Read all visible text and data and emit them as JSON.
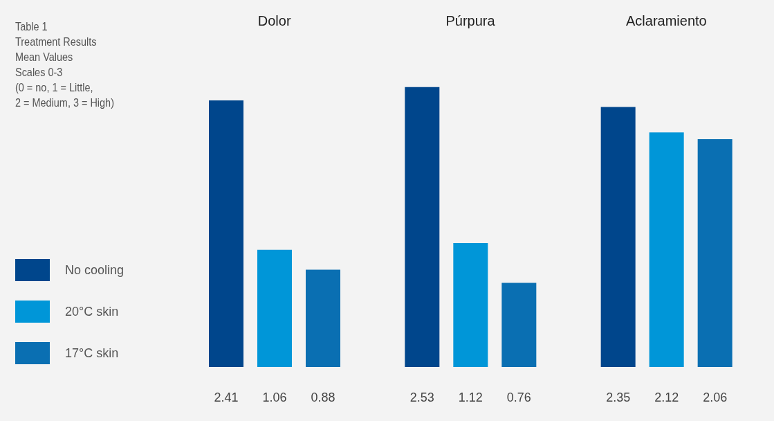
{
  "chart_data": {
    "type": "bar",
    "title": "Table 1\nTreatment Results\nMean Values\nScales 0-3\n(0 = no, 1 = Little,\n2 = Medium, 3 = High)",
    "categories": [
      "Dolor",
      "Púrpura",
      "Aclaramiento"
    ],
    "series": [
      {
        "name": "No cooling",
        "color": "#00468c",
        "values": [
          2.41,
          2.53,
          2.35
        ]
      },
      {
        "name": "20°C skin",
        "color": "#0096d8",
        "values": [
          1.06,
          1.12,
          2.12
        ]
      },
      {
        "name": "17°C skin",
        "color": "#0a6fb2",
        "values": [
          0.88,
          0.76,
          2.06
        ]
      }
    ],
    "data_labels": true,
    "legend": "left",
    "grid": false
  }
}
